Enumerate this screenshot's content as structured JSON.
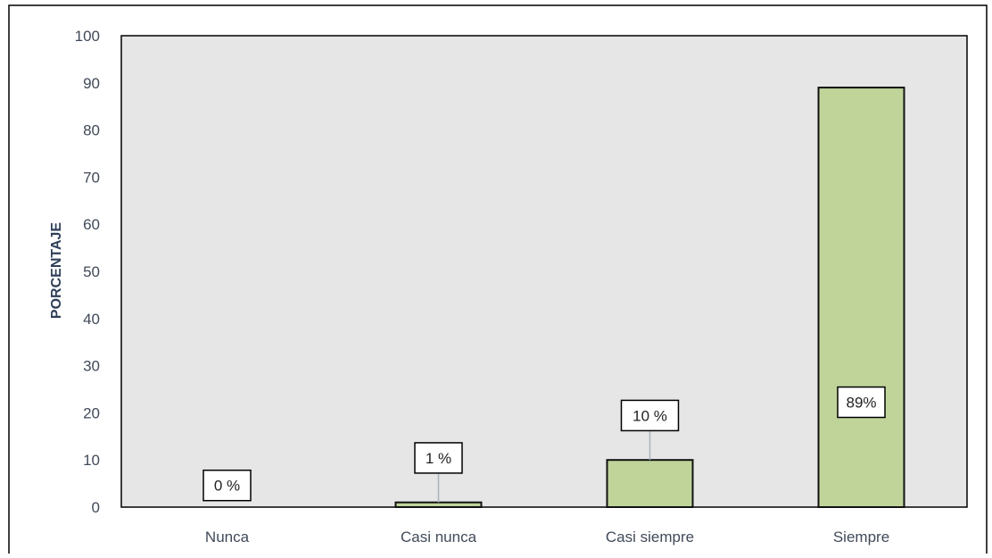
{
  "chart_data": {
    "type": "bar",
    "categories": [
      "Nunca",
      "Casi nunca",
      "Casi siempre",
      "Siempre"
    ],
    "values": [
      0,
      1,
      10,
      89
    ],
    "data_labels": [
      "0 %",
      "1 %",
      "10 %",
      "89%"
    ],
    "title": "",
    "xlabel": "",
    "ylabel": "PORCENTAJE",
    "ylim": [
      0,
      100
    ],
    "yticks": [
      "0",
      "10",
      "20",
      "30",
      "40",
      "50",
      "60",
      "70",
      "80",
      "90",
      "100"
    ],
    "grid": false,
    "legend": "none",
    "colors": {
      "bar_fill": "#c0d49a",
      "bar_stroke": "#111111",
      "plot_background": "#e6e6e6",
      "leader_line": "#a9b3bf"
    }
  }
}
